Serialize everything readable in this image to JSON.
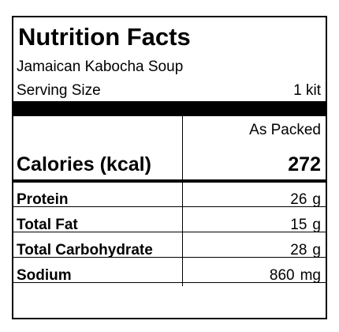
{
  "header": {
    "title": "Nutrition Facts",
    "product": "Jamaican Kabocha Soup",
    "serving_label": "Serving Size",
    "serving_size": "1 kit"
  },
  "table": {
    "column_header": "As Packed",
    "calories": {
      "label": "Calories (kcal)",
      "value": 272
    },
    "rows": [
      {
        "label": "Protein",
        "amount": 26,
        "unit": "g"
      },
      {
        "label": "Total Fat",
        "amount": 15,
        "unit": "g"
      },
      {
        "label": "Total Carbohydrate",
        "amount": 28,
        "unit": "g"
      },
      {
        "label": "Sodium",
        "amount": 860,
        "unit": "mg"
      }
    ]
  }
}
